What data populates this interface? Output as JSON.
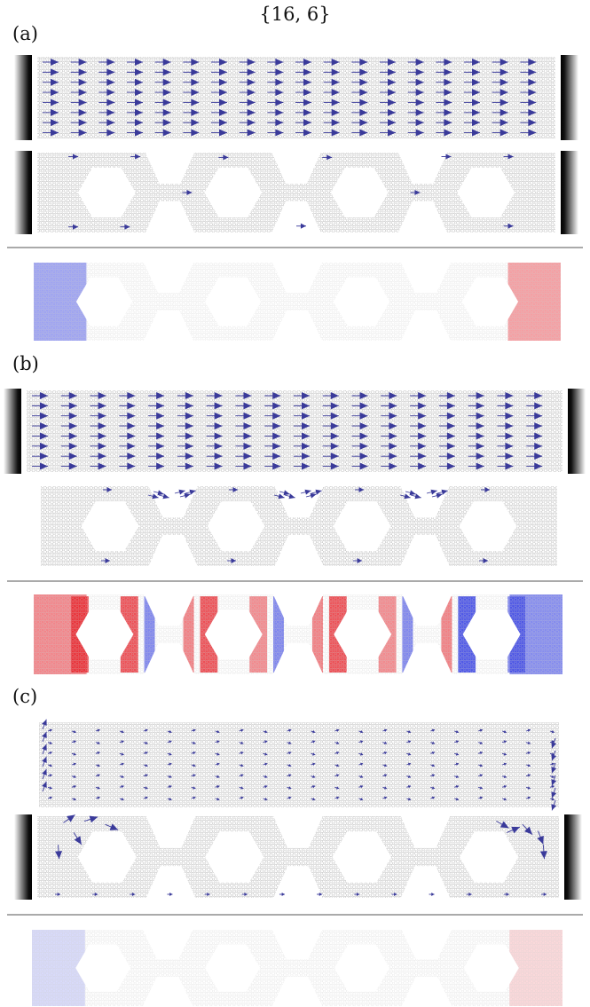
{
  "title": "{16, 6}",
  "panels": [
    {
      "label": "(a)",
      "flow_top": {
        "pattern": "uniform",
        "leads": true
      },
      "flow_bottom": {
        "pattern": "sparse-edges",
        "leads": true
      },
      "map": {
        "left_color": "blue",
        "right_color": "red",
        "strength": 0.75,
        "pattern": "edge-ends"
      }
    },
    {
      "label": "(b)",
      "flow_top": {
        "pattern": "uniform",
        "leads": true
      },
      "flow_bottom": {
        "pattern": "constrictions",
        "leads": false
      },
      "map": {
        "left_color": "red",
        "right_color": "blue",
        "strength": 0.95,
        "pattern": "alternating-holes"
      }
    },
    {
      "label": "(c)",
      "flow_top": {
        "pattern": "vortex-small",
        "leads": false
      },
      "flow_bottom": {
        "pattern": "edge-vortex",
        "leads": true
      },
      "map": {
        "left_color": "blue",
        "right_color": "red",
        "strength": 0.3,
        "pattern": "edge-ends"
      }
    }
  ],
  "colors": {
    "lattice": "#8a8a8a",
    "arrow": "#3a3a9a",
    "lead": "#111111",
    "positive": "#e8141c",
    "negative": "#1420e0",
    "divider": "#555555"
  }
}
